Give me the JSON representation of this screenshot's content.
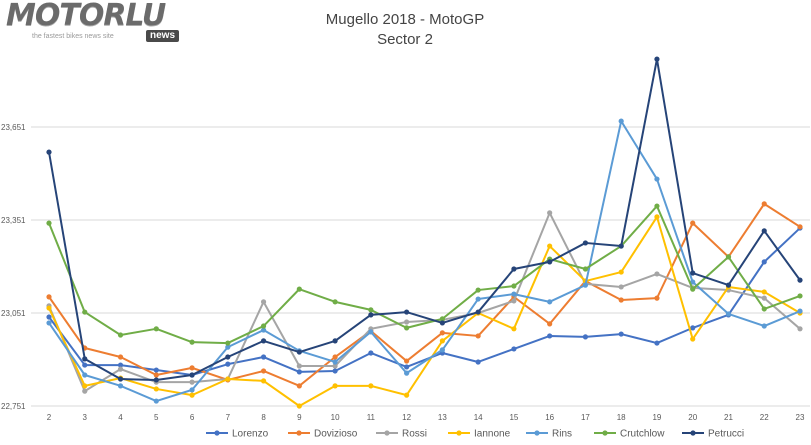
{
  "logo": {
    "main": "MOTORLU",
    "tagline": "the fastest bikes news site",
    "badge": "news"
  },
  "chart_data": {
    "type": "line",
    "title": "Mugello 2018 - MotoGP",
    "subtitle": "Sector 2",
    "xlabel": "",
    "ylabel": "",
    "x": [
      2,
      3,
      4,
      5,
      6,
      7,
      8,
      9,
      10,
      11,
      12,
      13,
      14,
      15,
      16,
      17,
      18,
      19,
      20,
      21,
      22,
      23
    ],
    "ylim": [
      22751,
      23900
    ],
    "yticks": [
      22751,
      23051,
      23351,
      23651
    ],
    "ytick_labels": [
      "22,751",
      "23,051",
      "23,351",
      "23,651"
    ],
    "grid": true,
    "legend": "bottom",
    "series": [
      {
        "name": "Lorenzo",
        "color": "#4472C4",
        "values": [
          23038,
          22883,
          22883,
          22867,
          22851,
          22886,
          22909,
          22861,
          22864,
          22922,
          22877,
          22922,
          22893,
          22935,
          22977,
          22974,
          22983,
          22954,
          23003,
          23045,
          23216,
          23325
        ]
      },
      {
        "name": "Dovizioso",
        "color": "#ED7D31",
        "values": [
          23103,
          22938,
          22909,
          22851,
          22874,
          22835,
          22864,
          22816,
          22909,
          22993,
          22896,
          22987,
          22977,
          23103,
          23016,
          23154,
          23093,
          23099,
          23341,
          23232,
          23403,
          23329
        ]
      },
      {
        "name": "Rossi",
        "color": "#A5A5A5",
        "values": [
          23074,
          22799,
          22870,
          22828,
          22828,
          22838,
          23087,
          22880,
          22880,
          23000,
          23022,
          23029,
          23051,
          23090,
          23374,
          23145,
          23135,
          23177,
          23132,
          23125,
          23099,
          23000
        ]
      },
      {
        "name": "Iannone",
        "color": "#FFC000",
        "values": [
          23067,
          22816,
          22841,
          22806,
          22786,
          22838,
          22832,
          22751,
          22816,
          22816,
          22786,
          22961,
          23051,
          23000,
          23267,
          23154,
          23183,
          23361,
          22967,
          23135,
          23119,
          23051
        ]
      },
      {
        "name": "Rins",
        "color": "#5B9BD5",
        "values": [
          23019,
          22851,
          22816,
          22767,
          22803,
          22941,
          22996,
          22929,
          22893,
          22990,
          22857,
          22932,
          23096,
          23112,
          23087,
          23141,
          23670,
          23483,
          23151,
          23048,
          23009,
          23057
        ]
      },
      {
        "name": "Crutchlow",
        "color": "#70AD47",
        "values": [
          23341,
          23054,
          22980,
          23000,
          22957,
          22954,
          23009,
          23128,
          23087,
          23061,
          23003,
          23032,
          23125,
          23138,
          23225,
          23193,
          23267,
          23396,
          23128,
          23232,
          23064,
          23106
        ]
      },
      {
        "name": "Petrucci",
        "color": "#264478",
        "values": [
          23570,
          22903,
          22838,
          22835,
          22851,
          22909,
          22961,
          22925,
          22961,
          23045,
          23054,
          23019,
          23054,
          23193,
          23216,
          23277,
          23267,
          23870,
          23180,
          23141,
          23316,
          23157
        ]
      }
    ]
  }
}
